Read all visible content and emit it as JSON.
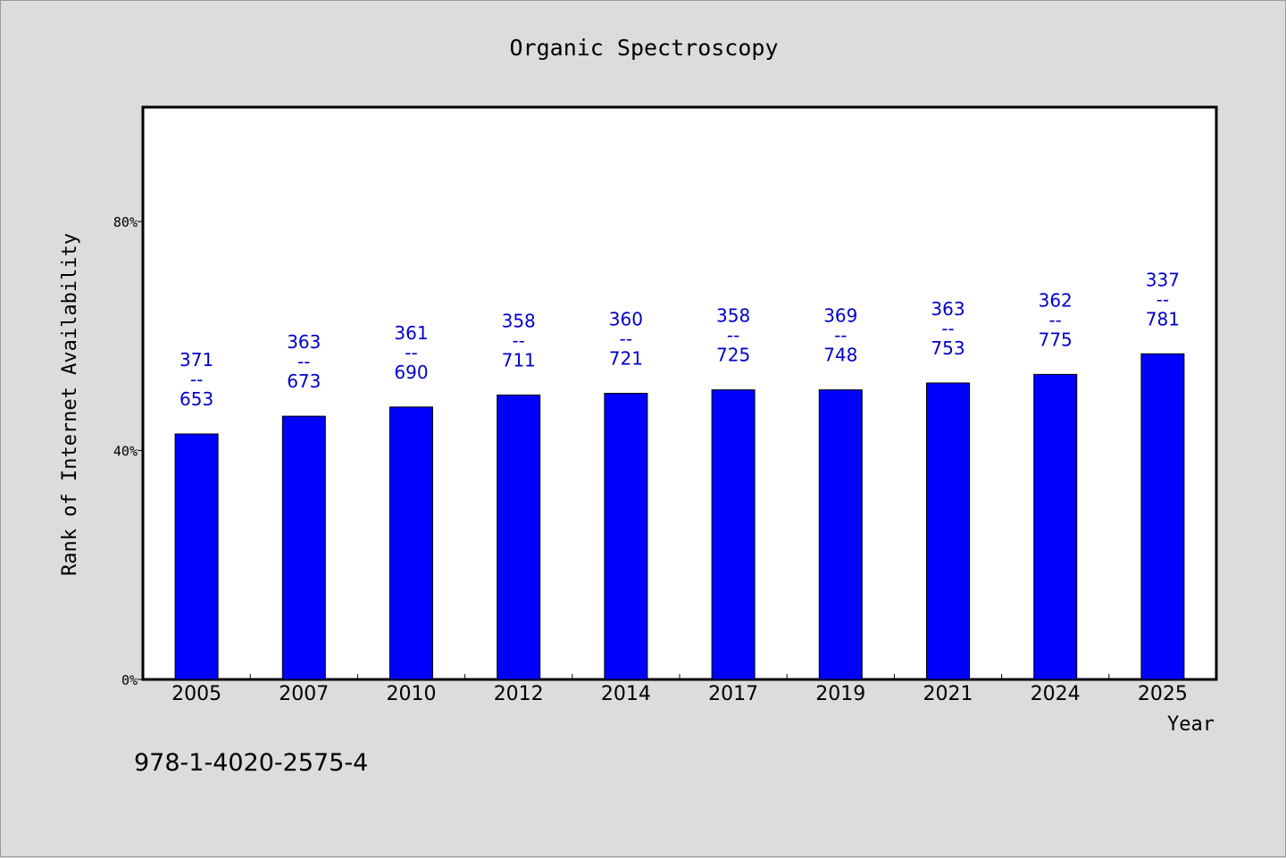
{
  "chart_data": {
    "type": "bar",
    "title": "Organic Spectroscopy",
    "xlabel": "Year",
    "ylabel": "Rank of Internet Availability",
    "ylim": [
      0,
      100
    ],
    "yticks": [
      0,
      40,
      80
    ],
    "ytick_labels": [
      "0%",
      "40%",
      "80%"
    ],
    "grid": false,
    "categories": [
      "2005",
      "2007",
      "2010",
      "2012",
      "2014",
      "2017",
      "2019",
      "2021",
      "2024",
      "2025"
    ],
    "values": [
      42.9,
      46.0,
      47.6,
      49.7,
      50.0,
      50.6,
      50.6,
      51.8,
      53.3,
      56.9
    ],
    "data_labels": [
      [
        "371",
        "--",
        "653"
      ],
      [
        "363",
        "--",
        "673"
      ],
      [
        "361",
        "--",
        "690"
      ],
      [
        "358",
        "--",
        "711"
      ],
      [
        "360",
        "--",
        "721"
      ],
      [
        "358",
        "--",
        "725"
      ],
      [
        "369",
        "--",
        "748"
      ],
      [
        "363",
        "--",
        "753"
      ],
      [
        "362",
        "--",
        "775"
      ],
      [
        "337",
        "--",
        "781"
      ]
    ],
    "bar_color": "#0000ff",
    "label_color": "#0000cc"
  },
  "footer": {
    "code": "978-1-4020-2575-4"
  }
}
